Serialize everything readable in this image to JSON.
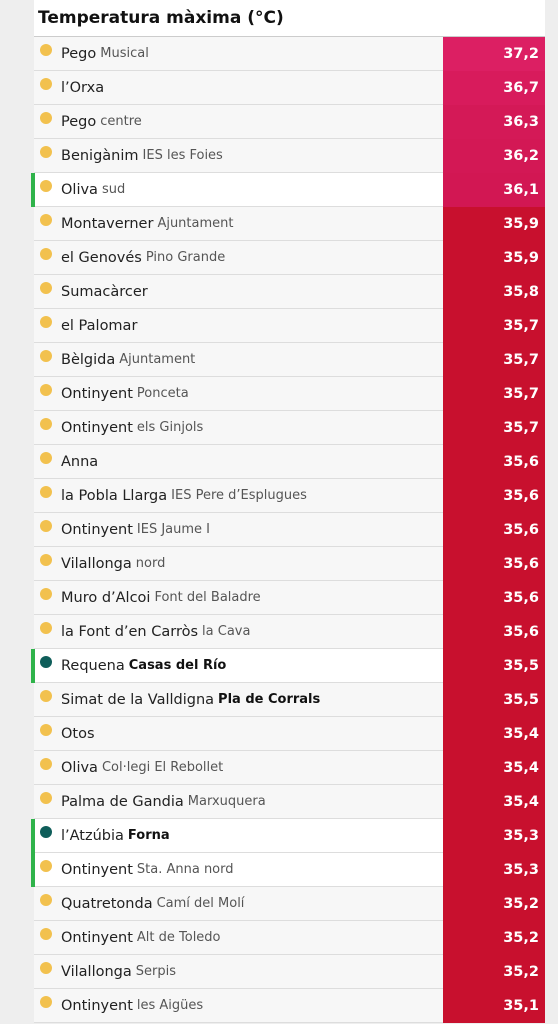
{
  "title": "Temperatura màxima (°C)",
  "rows": [
    {
      "name": "Pego",
      "sub": "Musical",
      "value": "37,2",
      "color": "#dc1f63",
      "dot": "#f2c14e"
    },
    {
      "name": "l’Orxa",
      "value": "36,7",
      "color": "#d81b5c",
      "dot": "#f2c14e"
    },
    {
      "name": "Pego",
      "sub": "centre",
      "value": "36,3",
      "color": "#d41957",
      "dot": "#f2c14e"
    },
    {
      "name": "Benigànim",
      "sub": "IES les Foies",
      "value": "36,2",
      "color": "#d31855",
      "dot": "#f2c14e"
    },
    {
      "name": "Oliva",
      "sub": "sud",
      "value": "36,1",
      "color": "#d21753",
      "dot": "#f2c14e",
      "highlight": true
    },
    {
      "name": "Montaverner",
      "sub": "Ajuntament",
      "value": "35,9",
      "color": "#c8102e",
      "dot": "#f2c14e"
    },
    {
      "name": "el Genovés",
      "sub": "Pino Grande",
      "value": "35,9",
      "color": "#c8102e",
      "dot": "#f2c14e"
    },
    {
      "name": "Sumacàrcer",
      "value": "35,8",
      "color": "#c8102e",
      "dot": "#f2c14e"
    },
    {
      "name": "el Palomar",
      "value": "35,7",
      "color": "#c8102e",
      "dot": "#f2c14e"
    },
    {
      "name": "Bèlgida",
      "sub": "Ajuntament",
      "value": "35,7",
      "color": "#c8102e",
      "dot": "#f2c14e"
    },
    {
      "name": "Ontinyent",
      "sub": "Ponceta",
      "value": "35,7",
      "color": "#c8102e",
      "dot": "#f2c14e"
    },
    {
      "name": "Ontinyent",
      "sub": "els Ginjols",
      "value": "35,7",
      "color": "#c8102e",
      "dot": "#f2c14e"
    },
    {
      "name": "Anna",
      "value": "35,6",
      "color": "#c8102e",
      "dot": "#f2c14e"
    },
    {
      "name": "la Pobla Llarga",
      "sub": "IES Pere d’Esplugues",
      "value": "35,6",
      "color": "#c8102e",
      "dot": "#f2c14e"
    },
    {
      "name": "Ontinyent",
      "sub": "IES Jaume I",
      "value": "35,6",
      "color": "#c8102e",
      "dot": "#f2c14e"
    },
    {
      "name": "Vilallonga",
      "sub": "nord",
      "value": "35,6",
      "color": "#c8102e",
      "dot": "#f2c14e"
    },
    {
      "name": "Muro d’Alcoi",
      "sub": "Font del Baladre",
      "value": "35,6",
      "color": "#c8102e",
      "dot": "#f2c14e"
    },
    {
      "name": "la Font d’en Carròs",
      "sub": "la Cava",
      "value": "35,6",
      "color": "#c8102e",
      "dot": "#f2c14e"
    },
    {
      "name": "Requena",
      "sub": "Casas del Río",
      "sub_bold": true,
      "value": "35,5",
      "color": "#c8102e",
      "dot": "#0f5e5a",
      "highlight": true
    },
    {
      "name": "Simat de la Valldigna",
      "sub": "Pla de Corrals",
      "sub_bold": true,
      "value": "35,5",
      "color": "#c8102e",
      "dot": "#f2c14e"
    },
    {
      "name": "Otos",
      "value": "35,4",
      "color": "#c8102e",
      "dot": "#f2c14e"
    },
    {
      "name": "Oliva",
      "sub": "Col·legi El Rebollet",
      "value": "35,4",
      "color": "#c8102e",
      "dot": "#f2c14e"
    },
    {
      "name": "Palma de Gandia",
      "sub": "Marxuquera",
      "value": "35,4",
      "color": "#c8102e",
      "dot": "#f2c14e"
    },
    {
      "name": "l’Atzúbia",
      "sub": "Forna",
      "sub_bold": true,
      "value": "35,3",
      "color": "#c8102e",
      "dot": "#0f5e5a",
      "highlight": true
    },
    {
      "name": "Ontinyent",
      "sub": "Sta. Anna nord",
      "value": "35,3",
      "color": "#c8102e",
      "dot": "#f2c14e",
      "highlight": true
    },
    {
      "name": "Quatretonda",
      "sub": "Camí del Molí",
      "value": "35,2",
      "color": "#c8102e",
      "dot": "#f2c14e"
    },
    {
      "name": "Ontinyent",
      "sub": "Alt de Toledo",
      "value": "35,2",
      "color": "#c8102e",
      "dot": "#f2c14e"
    },
    {
      "name": "Vilallonga",
      "sub": "Serpis",
      "value": "35,2",
      "color": "#c8102e",
      "dot": "#f2c14e"
    },
    {
      "name": "Ontinyent",
      "sub": "les Aigües",
      "value": "35,1",
      "color": "#c8102e",
      "dot": "#f2c14e"
    }
  ]
}
